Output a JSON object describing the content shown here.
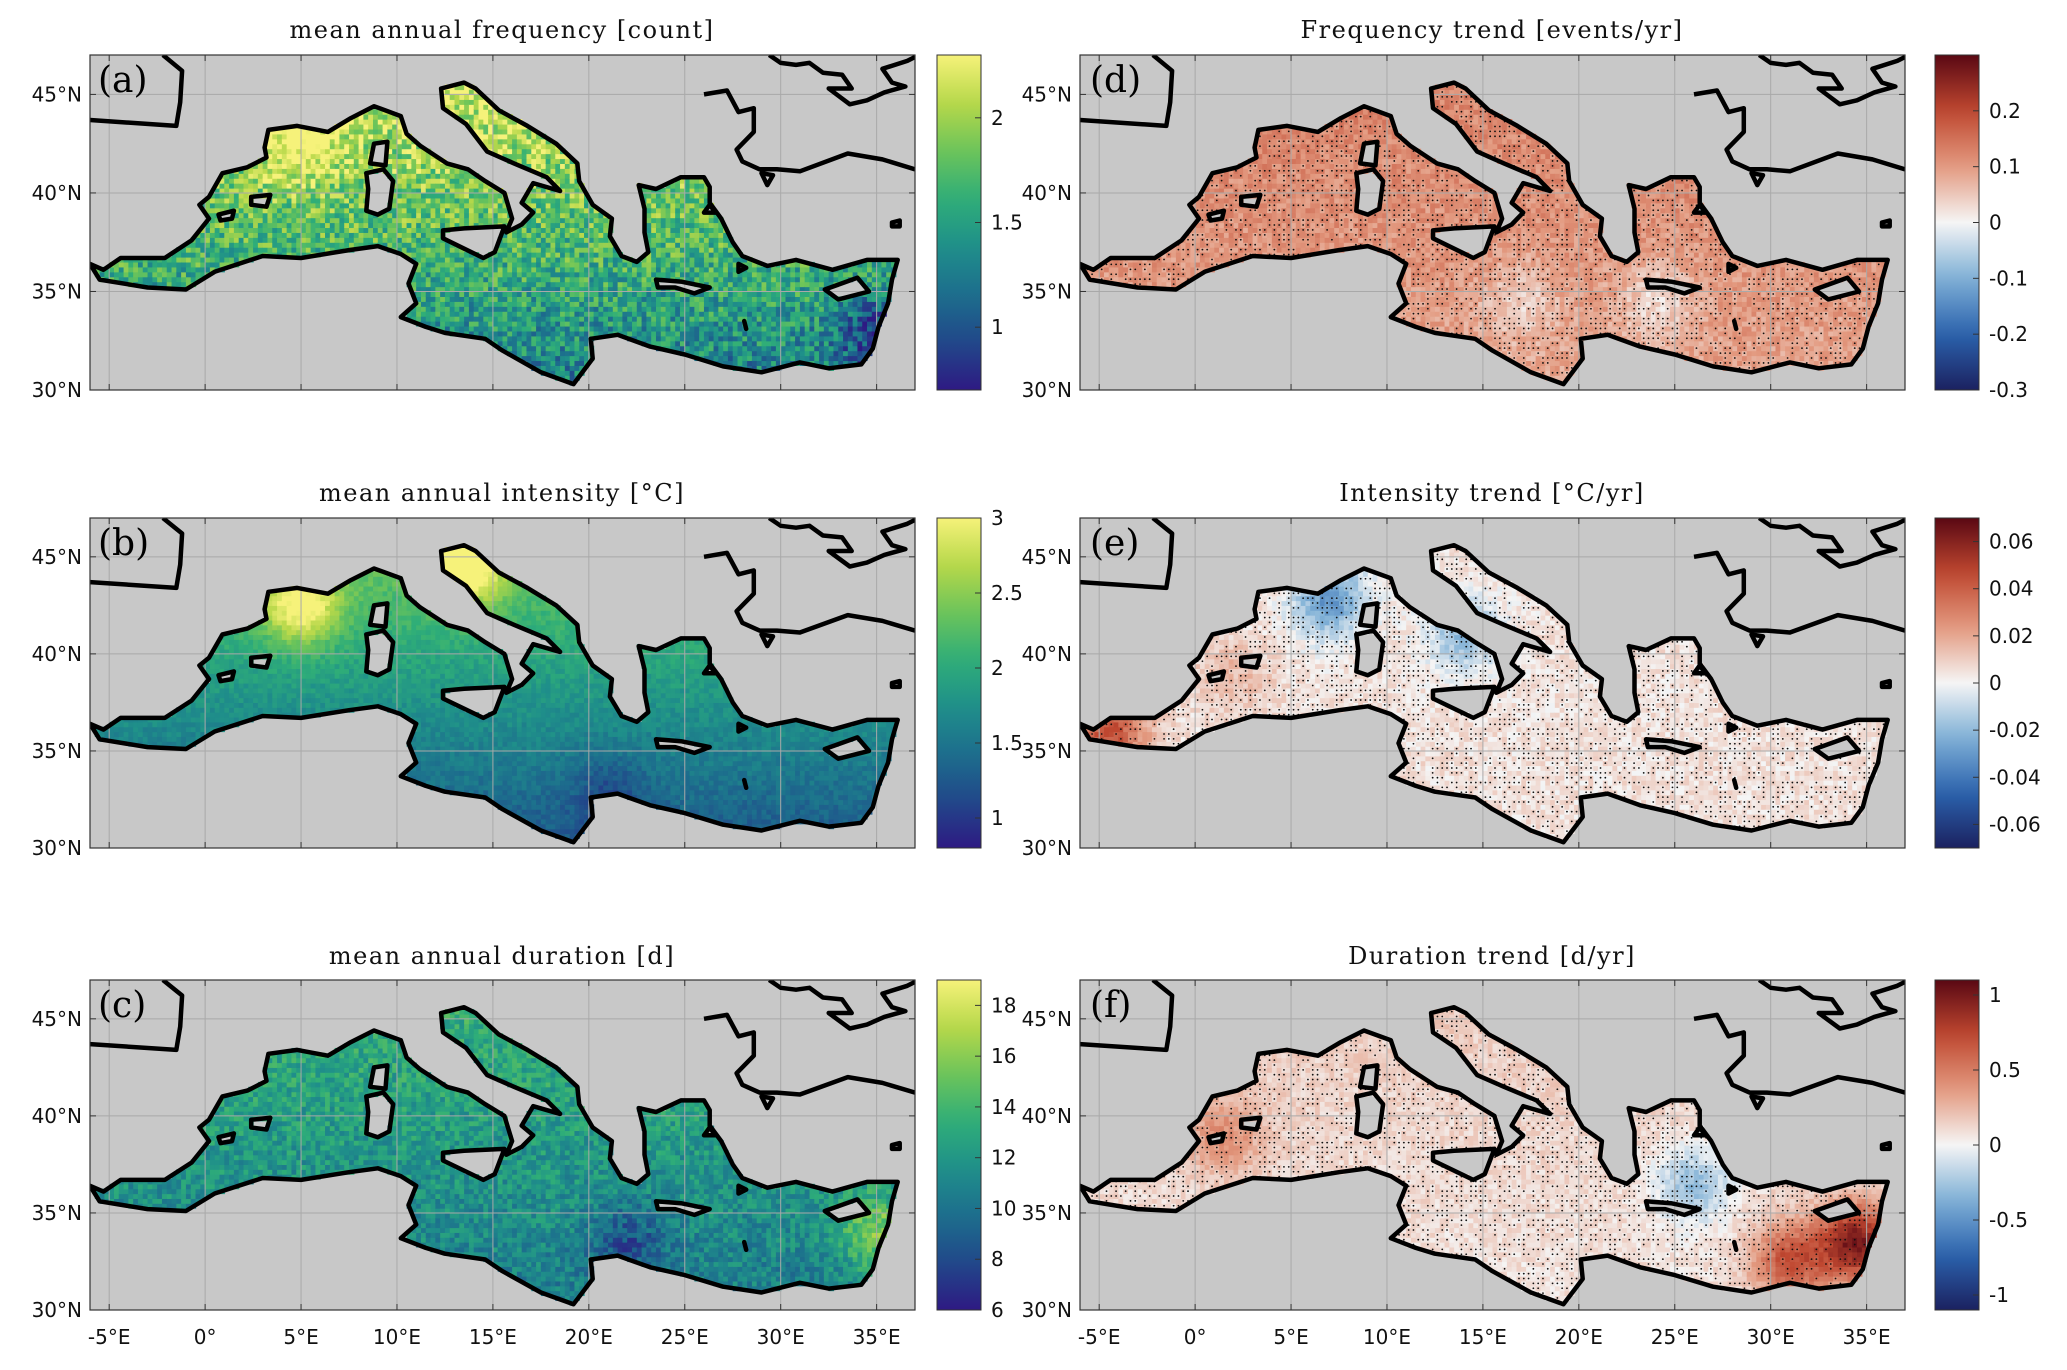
{
  "panels": [
    {
      "label": "(a)",
      "title": "mean annual frequency [count]",
      "colormap": "viridis",
      "colorbar": {
        "min": 0.7,
        "max": 2.3,
        "ticks": [
          1,
          1.5,
          2
        ],
        "tick_labels": [
          "1",
          "1.5",
          "2"
        ]
      },
      "field": {
        "base": 1.55,
        "gradient": 0.5,
        "noise": 0.35,
        "hotspots": [
          {
            "lon": 5,
            "lat": 42.5,
            "value": 2.0
          },
          {
            "lon": 35,
            "lat": 33,
            "value": 1.0
          }
        ]
      }
    },
    {
      "label": "(d)",
      "title": "Frequency trend [events/yr]",
      "colormap": "rdbu",
      "colorbar": {
        "min": -0.3,
        "max": 0.3,
        "ticks": [
          -0.3,
          -0.2,
          -0.1,
          0,
          0.1,
          0.2
        ],
        "tick_labels": [
          "-0.3",
          "-0.2",
          "-0.1",
          "0",
          "0.1",
          "0.2"
        ]
      },
      "field": {
        "base": 0.1,
        "gradient": 0.02,
        "noise": 0.03,
        "hotspots": [
          {
            "lon": 17,
            "lat": 34.5,
            "value": 0.04
          },
          {
            "lon": 24,
            "lat": 34.5,
            "value": 0.03
          }
        ]
      },
      "stippled": true
    },
    {
      "label": "(b)",
      "title": "mean annual intensity [°C]",
      "colormap": "viridis",
      "colorbar": {
        "min": 0.8,
        "max": 3.0,
        "ticks": [
          1,
          1.5,
          2,
          2.5,
          3
        ],
        "tick_labels": [
          "1",
          "1.5",
          "2",
          "2.5",
          "3"
        ]
      },
      "field": {
        "base": 1.6,
        "gradient": 0.6,
        "noise": 0.12,
        "hotspots": [
          {
            "lon": 5,
            "lat": 42.5,
            "value": 2.6
          },
          {
            "lon": 13.5,
            "lat": 44.5,
            "value": 2.7
          },
          {
            "lon": 21,
            "lat": 33,
            "value": 1.3
          }
        ]
      }
    },
    {
      "label": "(e)",
      "title": "Intensity trend [°C/yr]",
      "colormap": "rdbu",
      "colorbar": {
        "min": -0.07,
        "max": 0.07,
        "ticks": [
          -0.06,
          -0.04,
          -0.02,
          0,
          0.02,
          0.04,
          0.06
        ],
        "tick_labels": [
          "-0.06",
          "-0.04",
          "-0.02",
          "0",
          "0.02",
          "0.04",
          "0.06"
        ]
      },
      "field": {
        "base": 0.005,
        "gradient": 0.0,
        "noise": 0.006,
        "hotspots": [
          {
            "lon": -4.5,
            "lat": 36,
            "value": 0.045
          },
          {
            "lon": 7,
            "lat": 42.8,
            "value": -0.03
          },
          {
            "lon": 14,
            "lat": 41,
            "value": -0.02
          },
          {
            "lon": 2,
            "lat": 39,
            "value": 0.015
          }
        ]
      },
      "stippled": true
    },
    {
      "label": "(c)",
      "title": "mean annual duration [d]",
      "colormap": "viridis",
      "colorbar": {
        "min": 6,
        "max": 19,
        "ticks": [
          6,
          8,
          10,
          12,
          14,
          16,
          18
        ],
        "tick_labels": [
          "6",
          "8",
          "10",
          "12",
          "14",
          "16",
          "18"
        ]
      },
      "field": {
        "base": 11.5,
        "gradient": 1.5,
        "noise": 1.6,
        "hotspots": [
          {
            "lon": 35,
            "lat": 34,
            "value": 16
          },
          {
            "lon": 22,
            "lat": 33.5,
            "value": 8.5
          }
        ]
      }
    },
    {
      "label": "(f)",
      "title": "Duration trend [d/yr]",
      "colormap": "rdbu",
      "colorbar": {
        "min": -1.1,
        "max": 1.1,
        "ticks": [
          -1,
          -0.5,
          0,
          0.5,
          1
        ],
        "tick_labels": [
          "-1",
          "-0.5",
          "0",
          "0.5",
          "1"
        ]
      },
      "field": {
        "base": 0.1,
        "gradient": 0.05,
        "noise": 0.08,
        "hotspots": [
          {
            "lon": 34.5,
            "lat": 33.5,
            "value": 1.0
          },
          {
            "lon": 31,
            "lat": 32.5,
            "value": 0.7
          },
          {
            "lon": 1.5,
            "lat": 39,
            "value": 0.4
          },
          {
            "lon": 26,
            "lat": 36.5,
            "value": -0.3
          }
        ]
      },
      "stippled": true
    }
  ],
  "axes": {
    "lon_range": [
      -6,
      37
    ],
    "lat_range": [
      30,
      47
    ],
    "x_ticks": [
      -5,
      0,
      5,
      10,
      15,
      20,
      25,
      30,
      35
    ],
    "x_tick_labels": [
      "-5°E",
      "0°",
      "5°E",
      "10°E",
      "15°E",
      "20°E",
      "25°E",
      "30°E",
      "35°E"
    ],
    "y_ticks": [
      30,
      35,
      40,
      45
    ],
    "y_tick_labels": [
      "30°N",
      "35°N",
      "40°N",
      "45°N"
    ]
  },
  "colors": {
    "land": "#c8c8c8",
    "coast": "#000000",
    "grid": "#a9a9a9",
    "viridis": [
      "#2e1a83",
      "#21488a",
      "#1d6e8d",
      "#1f8f8a",
      "#2fae78",
      "#6cc45a",
      "#b7d84a",
      "#f6f27a"
    ],
    "rdbu": [
      "#1b2160",
      "#2b62ad",
      "#7fb0d6",
      "#f5f5f5",
      "#e39a80",
      "#bf4730",
      "#5a0813"
    ]
  },
  "sea": [
    [
      -6,
      36.4
    ],
    [
      -5.5,
      35.6
    ],
    [
      -3,
      35.2
    ],
    [
      -1,
      35.1
    ],
    [
      0.5,
      36.0
    ],
    [
      3,
      36.8
    ],
    [
      5,
      36.7
    ],
    [
      7.5,
      37.1
    ],
    [
      9,
      37.3
    ],
    [
      10.2,
      36.9
    ],
    [
      11,
      36.4
    ],
    [
      10.6,
      35.4
    ],
    [
      11,
      34.4
    ],
    [
      10.2,
      33.7
    ],
    [
      11.5,
      33.2
    ],
    [
      12.5,
      32.9
    ],
    [
      14.6,
      32.6
    ],
    [
      15.5,
      32.0
    ],
    [
      17.5,
      30.9
    ],
    [
      19.2,
      30.3
    ],
    [
      20.2,
      31.6
    ],
    [
      20.1,
      32.6
    ],
    [
      21.5,
      32.8
    ],
    [
      23.2,
      32.2
    ],
    [
      25,
      31.8
    ],
    [
      27,
      31.2
    ],
    [
      29,
      30.9
    ],
    [
      31,
      31.4
    ],
    [
      32.5,
      31.1
    ],
    [
      34.2,
      31.3
    ],
    [
      34.8,
      32.1
    ],
    [
      35.1,
      33.2
    ],
    [
      35.6,
      34.4
    ],
    [
      35.8,
      35.6
    ],
    [
      36.1,
      36.6
    ],
    [
      34.5,
      36.6
    ],
    [
      32.7,
      36.1
    ],
    [
      30.8,
      36.6
    ],
    [
      29.3,
      36.3
    ],
    [
      28.0,
      36.8
    ],
    [
      27.5,
      37.5
    ],
    [
      26.9,
      38.7
    ],
    [
      26.3,
      39.5
    ],
    [
      26.3,
      40.3
    ],
    [
      26.0,
      40.8
    ],
    [
      24.8,
      40.8
    ],
    [
      23.5,
      40.2
    ],
    [
      22.6,
      40.4
    ],
    [
      22.9,
      39.2
    ],
    [
      22.9,
      38.0
    ],
    [
      23.1,
      37.0
    ],
    [
      22.5,
      36.5
    ],
    [
      21.7,
      36.8
    ],
    [
      21.1,
      37.8
    ],
    [
      21.2,
      38.7
    ],
    [
      20.2,
      39.4
    ],
    [
      19.5,
      40.6
    ],
    [
      19.4,
      41.5
    ],
    [
      18.3,
      42.5
    ],
    [
      16.8,
      43.4
    ],
    [
      15.3,
      44.2
    ],
    [
      14.1,
      45.3
    ],
    [
      13.5,
      45.6
    ],
    [
      12.3,
      45.3
    ],
    [
      12.4,
      44.3
    ],
    [
      13.6,
      43.5
    ],
    [
      14.7,
      42.1
    ],
    [
      16.1,
      41.5
    ],
    [
      17.8,
      40.8
    ],
    [
      18.5,
      40.1
    ],
    [
      17.1,
      40.5
    ],
    [
      16.5,
      39.5
    ],
    [
      17.1,
      39.0
    ],
    [
      16.5,
      38.4
    ],
    [
      15.7,
      38.0
    ],
    [
      16.0,
      38.7
    ],
    [
      15.6,
      40.0
    ],
    [
      14.6,
      40.6
    ],
    [
      13.7,
      41.2
    ],
    [
      12.6,
      41.5
    ],
    [
      11.2,
      42.4
    ],
    [
      10.5,
      43.0
    ],
    [
      10.2,
      43.9
    ],
    [
      8.8,
      44.4
    ],
    [
      7.6,
      43.8
    ],
    [
      6.4,
      43.1
    ],
    [
      4.8,
      43.4
    ],
    [
      3.3,
      43.2
    ],
    [
      3.1,
      42.3
    ],
    [
      3.2,
      41.8
    ],
    [
      2.2,
      41.3
    ],
    [
      0.9,
      41.0
    ],
    [
      0.2,
      39.8
    ],
    [
      -0.3,
      39.4
    ],
    [
      0.2,
      38.7
    ],
    [
      -0.7,
      37.6
    ],
    [
      -2.1,
      36.7
    ],
    [
      -4.4,
      36.7
    ],
    [
      -5.3,
      36.1
    ]
  ],
  "islands": [
    [
      [
        8.4,
        41.0
      ],
      [
        9.3,
        41.2
      ],
      [
        9.8,
        40.6
      ],
      [
        9.6,
        39.2
      ],
      [
        9.0,
        38.9
      ],
      [
        8.4,
        39.1
      ],
      [
        8.5,
        40.2
      ]
    ],
    [
      [
        8.6,
        41.5
      ],
      [
        9.4,
        41.4
      ],
      [
        9.5,
        42.6
      ],
      [
        8.8,
        42.5
      ]
    ],
    [
      [
        12.4,
        38.1
      ],
      [
        13.5,
        38.2
      ],
      [
        15.6,
        38.3
      ],
      [
        15.1,
        37.0
      ],
      [
        14.5,
        36.7
      ],
      [
        12.4,
        37.7
      ]
    ],
    [
      [
        23.5,
        35.6
      ],
      [
        24.8,
        35.5
      ],
      [
        26.3,
        35.2
      ],
      [
        25.5,
        34.9
      ],
      [
        24.5,
        35.2
      ],
      [
        23.6,
        35.2
      ]
    ],
    [
      [
        32.3,
        35.1
      ],
      [
        34.0,
        35.7
      ],
      [
        34.6,
        35.0
      ],
      [
        33.0,
        34.6
      ]
    ],
    [
      [
        2.4,
        39.8
      ],
      [
        3.4,
        39.9
      ],
      [
        3.2,
        39.3
      ],
      [
        2.4,
        39.4
      ]
    ],
    [
      [
        0.7,
        38.9
      ],
      [
        1.5,
        39.1
      ],
      [
        1.4,
        38.7
      ],
      [
        0.8,
        38.6
      ]
    ],
    [
      [
        26.3,
        39.4
      ],
      [
        26.6,
        39.0
      ],
      [
        26.0,
        39.0
      ]
    ],
    [
      [
        27.8,
        36.4
      ],
      [
        28.2,
        36.2
      ],
      [
        27.8,
        36.0
      ]
    ]
  ],
  "coast_lines": [
    [
      [
        -6,
        43.7
      ],
      [
        -1.5,
        43.4
      ],
      [
        -1.3,
        44.6
      ],
      [
        -1.2,
        46.2
      ],
      [
        -2.2,
        47.0
      ]
    ],
    [
      [
        26.0,
        45.0
      ],
      [
        27.2,
        45.2
      ],
      [
        27.8,
        44.1
      ],
      [
        28.6,
        44.3
      ],
      [
        28.6,
        43.1
      ],
      [
        27.7,
        42.2
      ],
      [
        28.0,
        41.6
      ],
      [
        28.9,
        41.2
      ],
      [
        29.8,
        41.2
      ],
      [
        31.0,
        41.1
      ],
      [
        33.5,
        42.0
      ],
      [
        35.3,
        41.7
      ],
      [
        37.0,
        41.2
      ]
    ],
    [
      [
        29.4,
        47.0
      ],
      [
        30.0,
        46.6
      ],
      [
        30.8,
        46.5
      ],
      [
        31.5,
        46.6
      ],
      [
        32.2,
        46.1
      ],
      [
        33.2,
        46.0
      ],
      [
        33.7,
        45.3
      ],
      [
        32.5,
        45.3
      ],
      [
        33.6,
        44.5
      ],
      [
        34.5,
        44.7
      ],
      [
        35.4,
        45.1
      ],
      [
        36.5,
        45.4
      ],
      [
        35.8,
        45.6
      ],
      [
        35.3,
        46.3
      ],
      [
        36.6,
        46.7
      ],
      [
        37.0,
        46.9
      ]
    ]
  ],
  "lakes": [
    [
      [
        29.0,
        41.0
      ],
      [
        29.6,
        40.9
      ],
      [
        29.3,
        40.4
      ]
    ],
    [
      [
        35.8,
        38.5
      ],
      [
        36.2,
        38.6
      ],
      [
        36.2,
        38.3
      ],
      [
        35.8,
        38.3
      ]
    ],
    [
      [
        28.2,
        33.1
      ],
      [
        28.1,
        33.5
      ]
    ]
  ]
}
